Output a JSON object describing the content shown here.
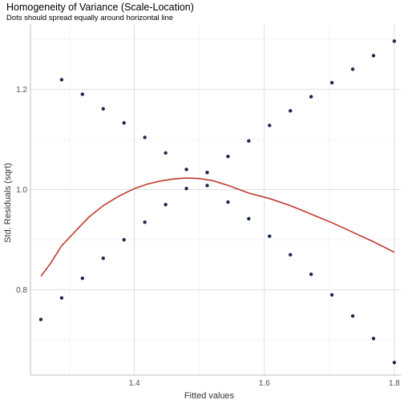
{
  "title": "Homogeneity of Variance (Scale-Location)",
  "subtitle": "Dots should spread equally around horizontal line",
  "colors": {
    "points": "#1b2a4a",
    "smooth_line": "#c0392b",
    "grid_major": "#dedede",
    "grid_minor": "#efefef",
    "axis_line": "#bdbdbd"
  },
  "chart_data": {
    "type": "scatter",
    "title": "Homogeneity of Variance (Scale-Location)",
    "subtitle": "Dots should spread equally around horizontal line",
    "xlabel": "Fitted values",
    "ylabel": "Std. Residuals (sqrt)",
    "xlim": [
      1.24,
      1.81
    ],
    "ylim": [
      0.63,
      1.33
    ],
    "x_ticks": [
      1.4,
      1.6,
      1.8
    ],
    "x_tick_labels": [
      "1.4",
      "1.6",
      "1.8"
    ],
    "y_ticks": [
      0.8,
      1.0,
      1.2
    ],
    "y_tick_labels": [
      "0.8",
      "1.0",
      "1.2"
    ],
    "grid": true,
    "points": [
      {
        "x": 1.256,
        "y": 0.741
      },
      {
        "x": 1.288,
        "y": 0.784
      },
      {
        "x": 1.288,
        "y": 1.219
      },
      {
        "x": 1.32,
        "y": 0.823
      },
      {
        "x": 1.32,
        "y": 1.19
      },
      {
        "x": 1.352,
        "y": 0.863
      },
      {
        "x": 1.352,
        "y": 1.161
      },
      {
        "x": 1.384,
        "y": 0.9
      },
      {
        "x": 1.384,
        "y": 1.133
      },
      {
        "x": 1.416,
        "y": 0.935
      },
      {
        "x": 1.416,
        "y": 1.104
      },
      {
        "x": 1.448,
        "y": 0.97
      },
      {
        "x": 1.448,
        "y": 1.073
      },
      {
        "x": 1.48,
        "y": 1.002
      },
      {
        "x": 1.48,
        "y": 1.04
      },
      {
        "x": 1.512,
        "y": 1.008
      },
      {
        "x": 1.512,
        "y": 1.034
      },
      {
        "x": 1.544,
        "y": 0.975
      },
      {
        "x": 1.544,
        "y": 1.066
      },
      {
        "x": 1.576,
        "y": 0.942
      },
      {
        "x": 1.576,
        "y": 1.097
      },
      {
        "x": 1.608,
        "y": 0.907
      },
      {
        "x": 1.608,
        "y": 1.128
      },
      {
        "x": 1.64,
        "y": 0.87
      },
      {
        "x": 1.64,
        "y": 1.157
      },
      {
        "x": 1.672,
        "y": 0.831
      },
      {
        "x": 1.672,
        "y": 1.185
      },
      {
        "x": 1.704,
        "y": 0.79
      },
      {
        "x": 1.704,
        "y": 1.213
      },
      {
        "x": 1.736,
        "y": 0.748
      },
      {
        "x": 1.736,
        "y": 1.24
      },
      {
        "x": 1.768,
        "y": 0.703
      },
      {
        "x": 1.768,
        "y": 1.267
      },
      {
        "x": 1.8,
        "y": 0.655
      },
      {
        "x": 1.8,
        "y": 1.296
      }
    ],
    "smooth_line": [
      {
        "x": 1.256,
        "y": 0.827
      },
      {
        "x": 1.27,
        "y": 0.851
      },
      {
        "x": 1.288,
        "y": 0.888
      },
      {
        "x": 1.31,
        "y": 0.918
      },
      {
        "x": 1.33,
        "y": 0.945
      },
      {
        "x": 1.352,
        "y": 0.968
      },
      {
        "x": 1.375,
        "y": 0.986
      },
      {
        "x": 1.4,
        "y": 1.002
      },
      {
        "x": 1.42,
        "y": 1.011
      },
      {
        "x": 1.44,
        "y": 1.017
      },
      {
        "x": 1.46,
        "y": 1.021
      },
      {
        "x": 1.48,
        "y": 1.023
      },
      {
        "x": 1.5,
        "y": 1.022
      },
      {
        "x": 1.52,
        "y": 1.018
      },
      {
        "x": 1.545,
        "y": 1.008
      },
      {
        "x": 1.576,
        "y": 0.993
      },
      {
        "x": 1.608,
        "y": 0.982
      },
      {
        "x": 1.64,
        "y": 0.968
      },
      {
        "x": 1.672,
        "y": 0.951
      },
      {
        "x": 1.704,
        "y": 0.934
      },
      {
        "x": 1.736,
        "y": 0.915
      },
      {
        "x": 1.768,
        "y": 0.896
      },
      {
        "x": 1.8,
        "y": 0.875
      }
    ]
  }
}
